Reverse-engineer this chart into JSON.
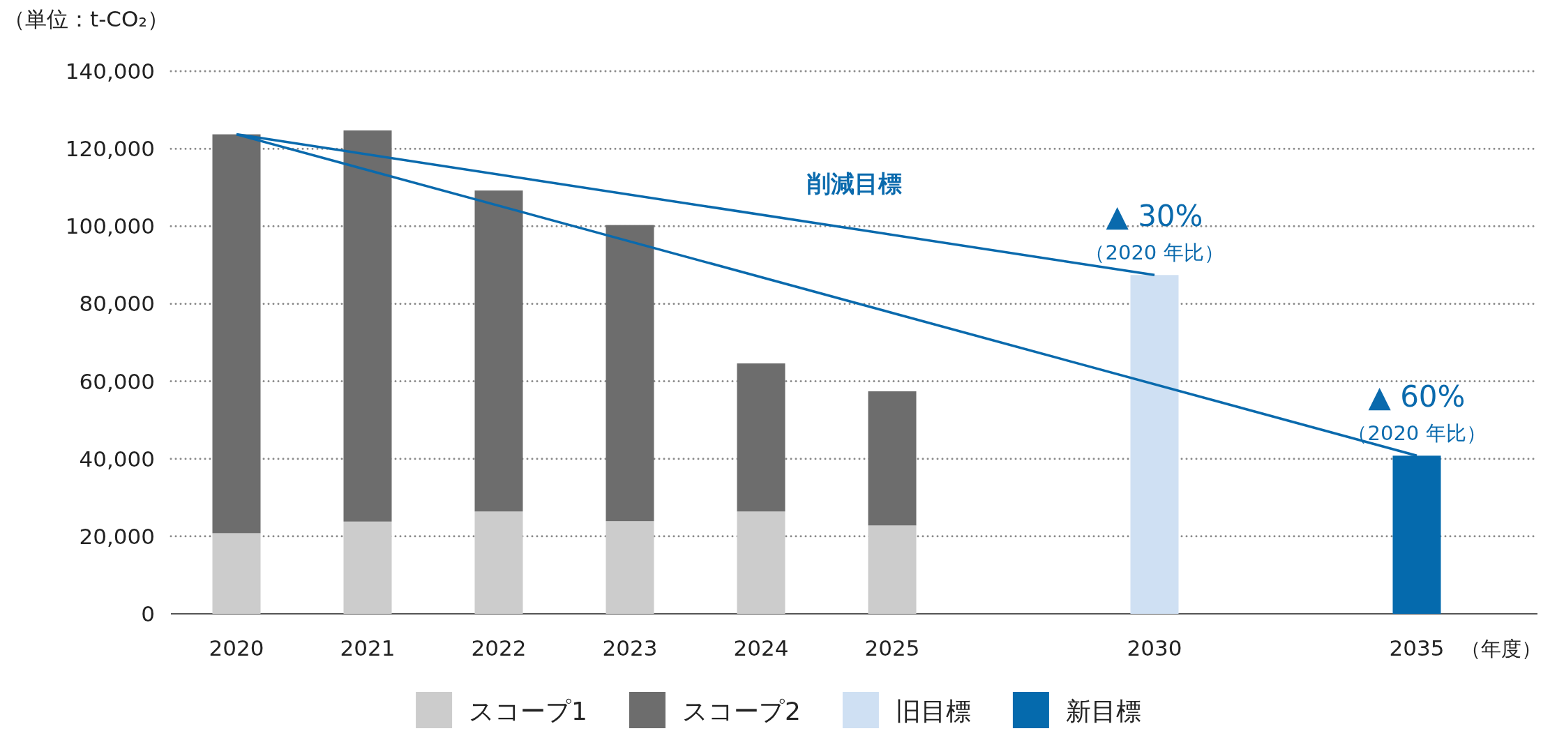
{
  "chart_data": {
    "type": "bar",
    "stacked": true,
    "ylabel": "（単位：t-CO₂）",
    "xlabel": "（年度）",
    "categories": [
      "2020",
      "2021",
      "2022",
      "2023",
      "2024",
      "2025",
      null,
      "2030",
      null,
      "2035"
    ],
    "series": [
      {
        "name": "スコープ1",
        "color": "#cccccc",
        "values": [
          20800,
          23800,
          26400,
          23900,
          26400,
          22800,
          null,
          null,
          null,
          null
        ]
      },
      {
        "name": "スコープ2",
        "color": "#6d6d6d",
        "values": [
          102900,
          100900,
          82800,
          76400,
          38200,
          34600,
          null,
          null,
          null,
          null
        ]
      },
      {
        "name": "旧目標",
        "color": "#cfe0f3",
        "values": [
          null,
          null,
          null,
          null,
          null,
          null,
          null,
          87400,
          null,
          null
        ]
      },
      {
        "name": "新目標",
        "color": "#056aad",
        "values": [
          null,
          null,
          null,
          null,
          null,
          null,
          null,
          null,
          null,
          40800
        ]
      },
      {
        "type": "line",
        "color": "#0a6aad",
        "values": [
          123700,
          null,
          null,
          null,
          null,
          null,
          null,
          87400,
          null,
          null
        ]
      },
      {
        "type": "line",
        "color": "#0a6aad",
        "values": [
          123700,
          null,
          null,
          null,
          null,
          null,
          null,
          null,
          null,
          40800
        ]
      }
    ],
    "ylim": [
      0,
      140000
    ],
    "yticks": [
      0,
      {
        "value": 20000,
        "label": "20,000"
      },
      {
        "value": 40000,
        "label": "40,000"
      },
      {
        "value": 60000,
        "label": "60,000"
      },
      {
        "value": 80000,
        "label": "80,000"
      },
      {
        "value": 100000,
        "label": "100,000"
      },
      {
        "value": 120000,
        "label": "120,000"
      },
      {
        "value": 140000,
        "label": "140,000"
      }
    ],
    "grid": "y",
    "legend": "bottom",
    "annotations": [
      "削減目標",
      {
        "text": "▲ 30%",
        "x": "2030",
        "y": 87400
      },
      {
        "text": "（2020 年比）",
        "x": "2030",
        "y": 87400
      },
      {
        "text": "▲ 60%",
        "x": "2035",
        "y": 40800
      },
      {
        "text": "（2020 年比）",
        "x": "2035",
        "y": 40800
      }
    ]
  }
}
